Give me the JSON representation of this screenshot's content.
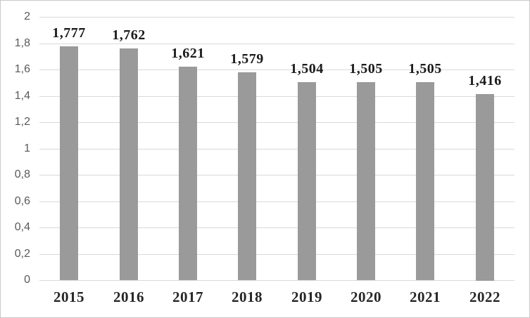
{
  "chart_data": {
    "type": "bar",
    "title": "",
    "xlabel": "",
    "ylabel": "",
    "categories": [
      "2015",
      "2016",
      "2017",
      "2018",
      "2019",
      "2020",
      "2021",
      "2022"
    ],
    "values": [
      1.777,
      1.762,
      1.621,
      1.579,
      1.504,
      1.505,
      1.505,
      1.416
    ],
    "value_labels": [
      "1,777",
      "1,762",
      "1,621",
      "1,579",
      "1,504",
      "1,505",
      "1,505",
      "1,416"
    ],
    "ylim": [
      0,
      2
    ],
    "ytick_step": 0.2,
    "ytick_labels": [
      "0",
      "0,2",
      "0,4",
      "0,6",
      "0,8",
      "1",
      "1,2",
      "1,4",
      "1,6",
      "1,8",
      "2"
    ],
    "decimal_separator": ",",
    "grid": true,
    "legend": false,
    "colors": {
      "bar": "#9a9a9a",
      "gridline": "#d9d9d9",
      "ytick_text": "#595959",
      "value_label_text": "#1a1a1a",
      "xtick_text": "#262626",
      "background": "#ffffff",
      "border": "#c8c8c8"
    }
  }
}
